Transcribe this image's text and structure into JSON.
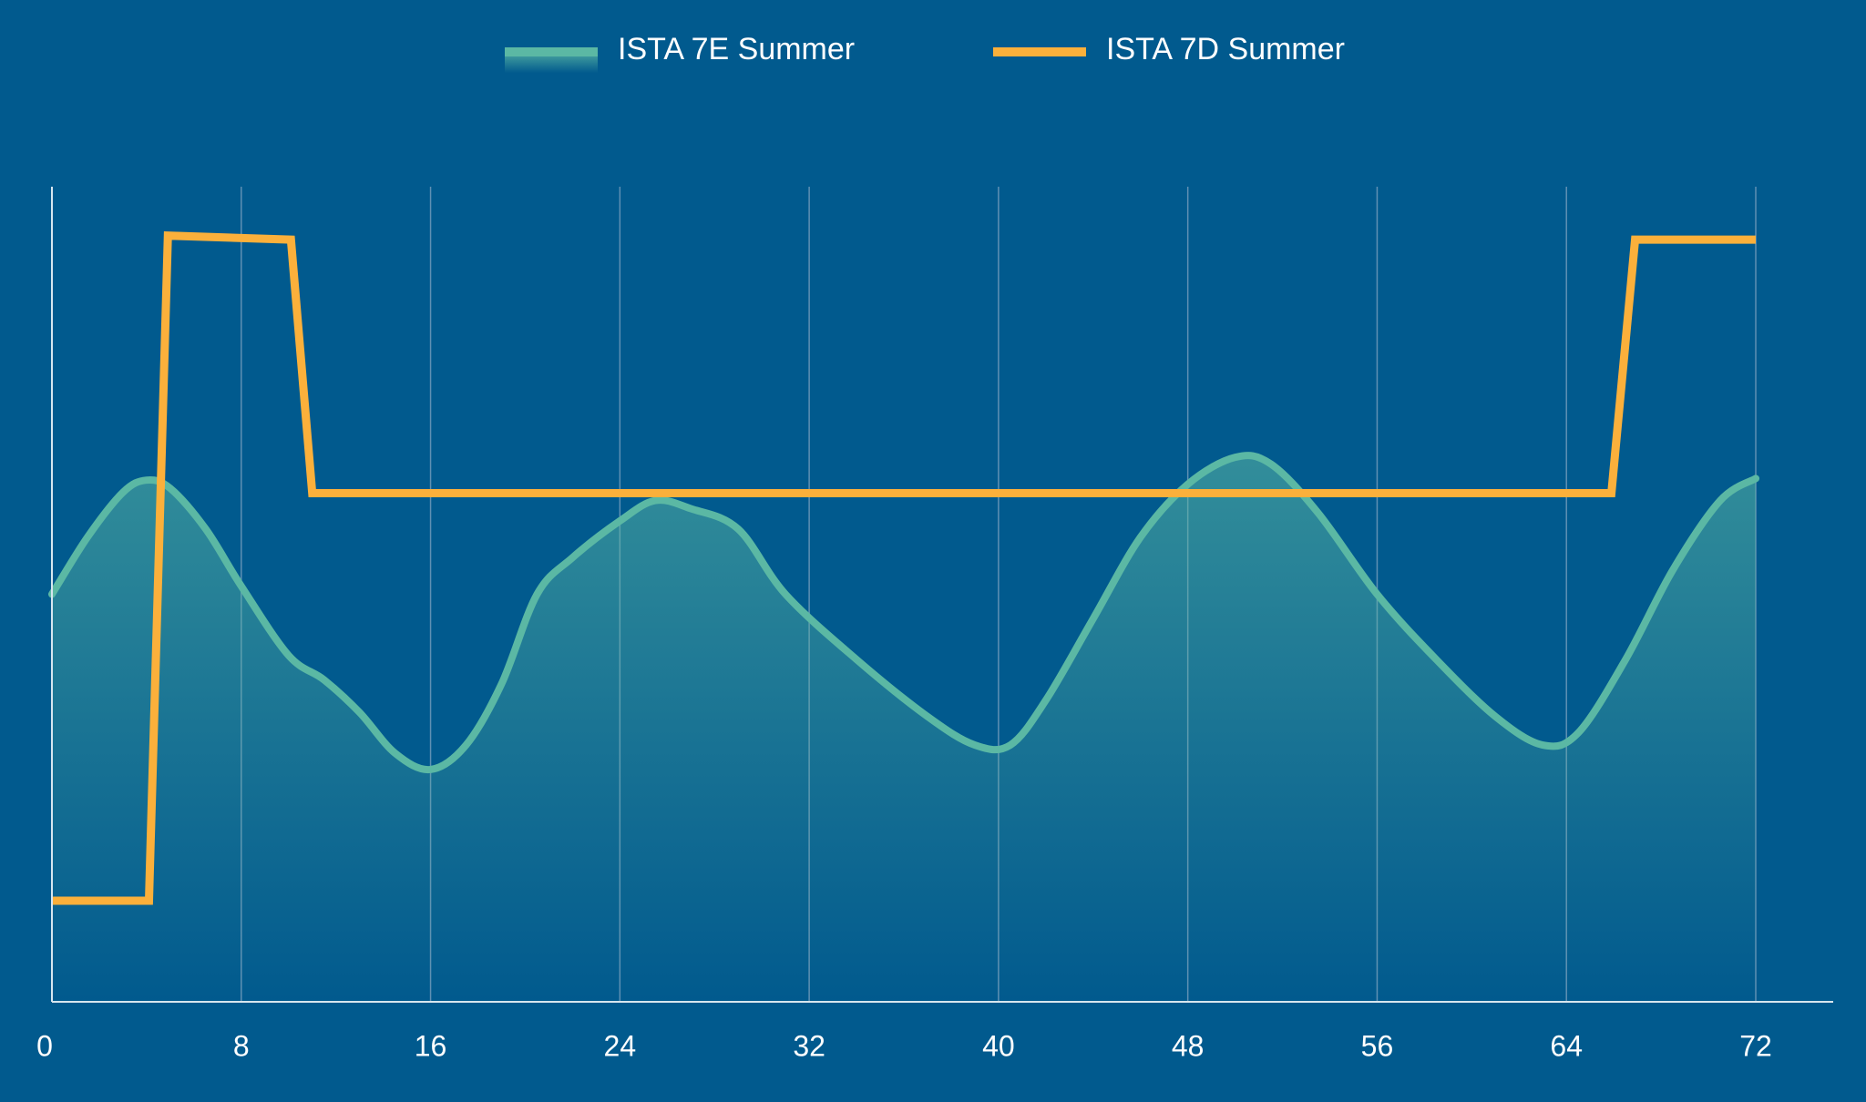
{
  "colors": {
    "background": "#015a8e",
    "ista_7e": "#5bb8a4",
    "ista_7d": "#fbb03b",
    "axis": "#d7e6ef",
    "grid": "#5f90b3",
    "text": "#ffffff"
  },
  "legend": {
    "position": "top-center",
    "items": [
      {
        "label": "ISTA 7E Summer",
        "style": "gradient-area",
        "color": "#5bb8a4"
      },
      {
        "label": "ISTA 7D Summer",
        "style": "line",
        "color": "#fbb03b"
      }
    ]
  },
  "chart_data": {
    "type": "line",
    "title": "",
    "xlabel": "",
    "ylabel": "",
    "xlim": [
      0,
      72
    ],
    "ylim": [
      0,
      100
    ],
    "y_axis_labels_shown": false,
    "x_ticks": [
      0,
      8,
      16,
      24,
      32,
      40,
      48,
      56,
      64,
      72
    ],
    "grid": "vertical",
    "series": [
      {
        "name": "ISTA 7E Summer",
        "style": "area",
        "points": [
          [
            0,
            50
          ],
          [
            1.5,
            57
          ],
          [
            3,
            62.5
          ],
          [
            4,
            64
          ],
          [
            5,
            63
          ],
          [
            6.5,
            58
          ],
          [
            8,
            51
          ],
          [
            10,
            42.5
          ],
          [
            11.5,
            39.5
          ],
          [
            13,
            35.5
          ],
          [
            14.5,
            30.5
          ],
          [
            16,
            28.5
          ],
          [
            17.5,
            31.5
          ],
          [
            19,
            39
          ],
          [
            20.5,
            50
          ],
          [
            22,
            54.5
          ],
          [
            24,
            59
          ],
          [
            25.5,
            61.5
          ],
          [
            27,
            60.5
          ],
          [
            29,
            58
          ],
          [
            31,
            50
          ],
          [
            34,
            42
          ],
          [
            37,
            35
          ],
          [
            39,
            31.5
          ],
          [
            40.5,
            31.5
          ],
          [
            42,
            37
          ],
          [
            44,
            47
          ],
          [
            46,
            57
          ],
          [
            48,
            63.5
          ],
          [
            50,
            66.8
          ],
          [
            51.5,
            66
          ],
          [
            53.5,
            60
          ],
          [
            56,
            50
          ],
          [
            58.5,
            42
          ],
          [
            61,
            35
          ],
          [
            63,
            31.5
          ],
          [
            64.5,
            33
          ],
          [
            66.5,
            42
          ],
          [
            68.5,
            53
          ],
          [
            70.5,
            61.5
          ],
          [
            72,
            64.2
          ]
        ]
      },
      {
        "name": "ISTA 7D Summer",
        "style": "step",
        "points": [
          [
            0,
            12.4
          ],
          [
            4.1,
            12.4
          ],
          [
            4.9,
            94
          ],
          [
            10.1,
            93.5
          ],
          [
            11,
            62.4
          ],
          [
            65.9,
            62.4
          ],
          [
            66.9,
            93.5
          ],
          [
            72,
            93.5
          ]
        ]
      }
    ]
  }
}
